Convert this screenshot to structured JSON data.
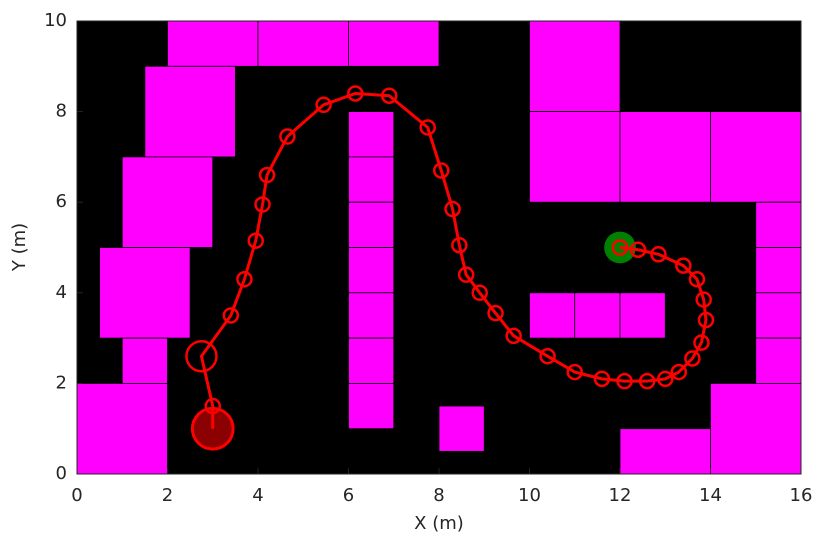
{
  "chart_data": {
    "type": "map",
    "x_label": "X (m)",
    "y_label": "Y (m)",
    "xlim": [
      0,
      16
    ],
    "ylim": [
      0,
      10
    ],
    "xticks": [
      0,
      2,
      4,
      6,
      8,
      10,
      12,
      14,
      16
    ],
    "yticks": [
      0,
      2,
      4,
      6,
      8,
      10
    ],
    "background": "#000000",
    "obstacle_color": "#ff00ff",
    "obstacles": [
      [
        2,
        9,
        2,
        1
      ],
      [
        4,
        9,
        2,
        1
      ],
      [
        6,
        9,
        2,
        1
      ],
      [
        1.5,
        7,
        2,
        2
      ],
      [
        1,
        5,
        2,
        2
      ],
      [
        0.5,
        3,
        2,
        2
      ],
      [
        1,
        2,
        1,
        1
      ],
      [
        0,
        0,
        2,
        2
      ],
      [
        6,
        7,
        1,
        1
      ],
      [
        6,
        6,
        1,
        1
      ],
      [
        6,
        5,
        1,
        1
      ],
      [
        6,
        4,
        1,
        1
      ],
      [
        6,
        3,
        1,
        1
      ],
      [
        6,
        2,
        1,
        1
      ],
      [
        6,
        1,
        1,
        1
      ],
      [
        8,
        0.5,
        1,
        1
      ],
      [
        10,
        8,
        2,
        2
      ],
      [
        10,
        6,
        2,
        2
      ],
      [
        12,
        6,
        2,
        2
      ],
      [
        14,
        6,
        2,
        2
      ],
      [
        15,
        5,
        1,
        1
      ],
      [
        15,
        4,
        1,
        1
      ],
      [
        15,
        3,
        1,
        1
      ],
      [
        15,
        2,
        1,
        1
      ],
      [
        10,
        3,
        1,
        1
      ],
      [
        11,
        3,
        1,
        1
      ],
      [
        12,
        3,
        1,
        1
      ],
      [
        14,
        0,
        2,
        2
      ],
      [
        12,
        0,
        2,
        1
      ]
    ],
    "path_color": "#ff0000",
    "x": [
      3,
      3,
      2.75,
      3.4,
      3.7,
      3.95,
      4.1,
      4.2,
      4.65,
      5.45,
      6.15,
      6.9,
      7.75,
      8.05,
      8.3,
      8.45,
      8.6,
      8.9,
      9.25,
      9.65,
      10.4,
      11.0,
      11.6,
      12.1,
      12.6,
      13.0,
      13.3,
      13.6,
      13.8,
      13.9,
      13.85,
      13.7,
      13.4,
      12.85,
      12.4,
      12.0
    ],
    "y": [
      1,
      1.5,
      2.6,
      3.5,
      4.3,
      5.15,
      5.95,
      6.6,
      7.45,
      8.15,
      8.4,
      8.35,
      7.65,
      6.7,
      5.85,
      5.05,
      4.4,
      4.0,
      3.55,
      3.05,
      2.6,
      2.25,
      2.1,
      2.05,
      2.05,
      2.1,
      2.25,
      2.55,
      2.9,
      3.4,
      3.85,
      4.3,
      4.6,
      4.85,
      4.95,
      5.0
    ],
    "start": {
      "x": 3,
      "y": 1,
      "r": 0.45,
      "color": "#8b0000"
    },
    "goal": {
      "x": 12,
      "y": 5,
      "r": 0.35,
      "color": "#008000"
    }
  }
}
